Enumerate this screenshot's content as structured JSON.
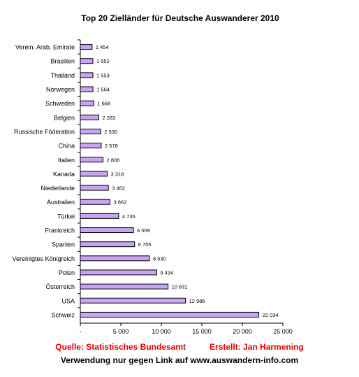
{
  "chart_data": {
    "type": "bar",
    "orientation": "horizontal",
    "title": "Top 20 Zielländer für Deutsche Auswanderer 2010",
    "categories": [
      "Verein. Arab. Emirate",
      "Brasilien",
      "Thailand",
      "Norwegen",
      "Schweden",
      "Belgien",
      "Russische Föderation",
      "China",
      "Italien",
      "Kanada",
      "Niederlande",
      "Australien",
      "Türkei",
      "Frankreich",
      "Spanien",
      "Vereinigtes Königreich",
      "Polen",
      "Österreich",
      "USA",
      "Schweiz"
    ],
    "values": [
      1454,
      1552,
      1553,
      1564,
      1668,
      2283,
      2530,
      2578,
      2806,
      3318,
      3462,
      3662,
      4735,
      6559,
      6705,
      8530,
      9434,
      10831,
      12986,
      22034
    ],
    "value_labels": [
      "1 454",
      "1 552",
      "1 553",
      "1 564",
      "1 668",
      "2 283",
      "2 530",
      "2 578",
      "2 806",
      "3 318",
      "3 462",
      "3 662",
      "4 735",
      "6 559",
      "6 705",
      "8 530",
      "9 434",
      "10 831",
      "12 986",
      "22 034"
    ],
    "x_ticks": [
      0,
      5000,
      10000,
      15000,
      20000,
      25000
    ],
    "x_tick_labels": [
      "-",
      "5 000",
      "10 000",
      "15 000",
      "20 000",
      "25 000"
    ],
    "xlim": [
      0,
      25000
    ],
    "grid": false,
    "legend": "none",
    "colors": {
      "bar_fill": "#c8a4f4",
      "bar_stroke": "#000000",
      "axis": "#000000"
    }
  },
  "footer": {
    "source": "Quelle: Statistisches Bundesamt",
    "credit": "Erstellt: Jan Harmening",
    "link_note": "Verwendung nur gegen Link auf www.auswandern-info.com",
    "source_color": "#e00000"
  }
}
